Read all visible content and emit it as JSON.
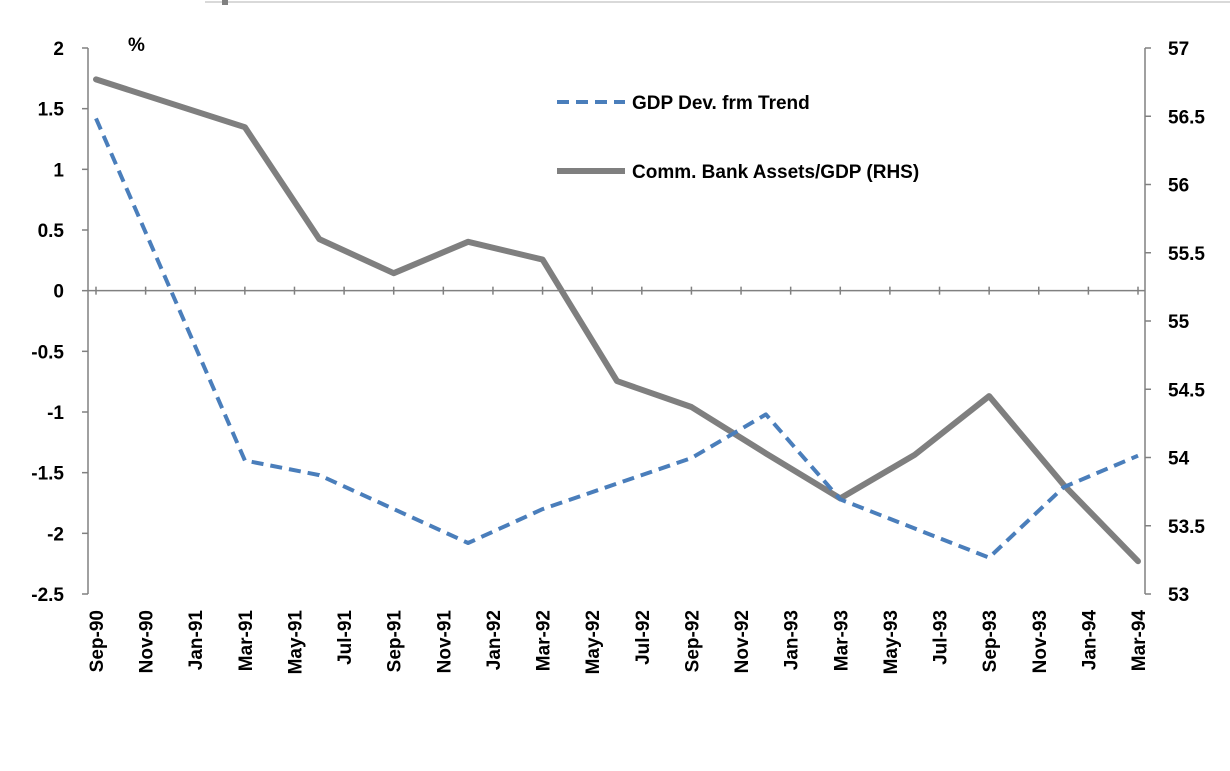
{
  "chart_data": {
    "type": "line",
    "unit_label": "%",
    "categories": [
      "Sep-90",
      "Nov-90",
      "Jan-91",
      "Mar-91",
      "May-91",
      "Jul-91",
      "Sep-91",
      "Nov-91",
      "Jan-92",
      "Mar-92",
      "May-92",
      "Jul-92",
      "Sep-92",
      "Nov-92",
      "Jan-93",
      "Mar-93",
      "May-93",
      "Jul-93",
      "Sep-93",
      "Nov-93",
      "Jan-94",
      "Mar-94"
    ],
    "y_left": {
      "min": -2.5,
      "max": 2,
      "ticks": [
        "2",
        "1.5",
        "1",
        "0.5",
        "0",
        "-0.5",
        "-1",
        "-1.5",
        "-2",
        "-2.5"
      ]
    },
    "y_right": {
      "min": 53,
      "max": 57,
      "ticks": [
        "57",
        "56.5",
        "56",
        "55.5",
        "55",
        "54.5",
        "54",
        "53.5",
        "53"
      ]
    },
    "series": [
      {
        "name": "GDP Dev. frm Trend",
        "axis": "left",
        "style": "dashed",
        "color": "#4A7EBB",
        "points": [
          {
            "x": "Sep-90",
            "y": 1.42
          },
          {
            "x": "Mar-91",
            "y": -1.4
          },
          {
            "x": "Jun-91",
            "y": -1.52
          },
          {
            "x": "Dec-91",
            "y": -2.08
          },
          {
            "x": "Mar-92",
            "y": -1.8
          },
          {
            "x": "Sep-92",
            "y": -1.38
          },
          {
            "x": "Dec-92",
            "y": -1.02
          },
          {
            "x": "Mar-93",
            "y": -1.72
          },
          {
            "x": "Sep-93",
            "y": -2.2
          },
          {
            "x": "Dec-93",
            "y": -1.62
          },
          {
            "x": "Mar-94",
            "y": -1.36
          }
        ]
      },
      {
        "name": "Comm. Bank Assets/GDP (RHS)",
        "axis": "right",
        "style": "solid",
        "color": "#7F7F7F",
        "points": [
          {
            "x": "Sep-90",
            "y": 56.77
          },
          {
            "x": "Mar-91",
            "y": 56.42
          },
          {
            "x": "Jun-91",
            "y": 55.6
          },
          {
            "x": "Sep-91",
            "y": 55.35
          },
          {
            "x": "Dec-91",
            "y": 55.58
          },
          {
            "x": "Mar-92",
            "y": 55.45
          },
          {
            "x": "Jun-92",
            "y": 54.56
          },
          {
            "x": "Sep-92",
            "y": 54.37
          },
          {
            "x": "Dec-92",
            "y": 54.03
          },
          {
            "x": "Mar-93",
            "y": 53.7
          },
          {
            "x": "Jun-93",
            "y": 54.02
          },
          {
            "x": "Sep-93",
            "y": 54.45
          },
          {
            "x": "Dec-93",
            "y": 53.8
          },
          {
            "x": "Mar-94",
            "y": 53.24
          }
        ]
      }
    ],
    "legend": {
      "placement": "top-center"
    },
    "grid": false
  }
}
